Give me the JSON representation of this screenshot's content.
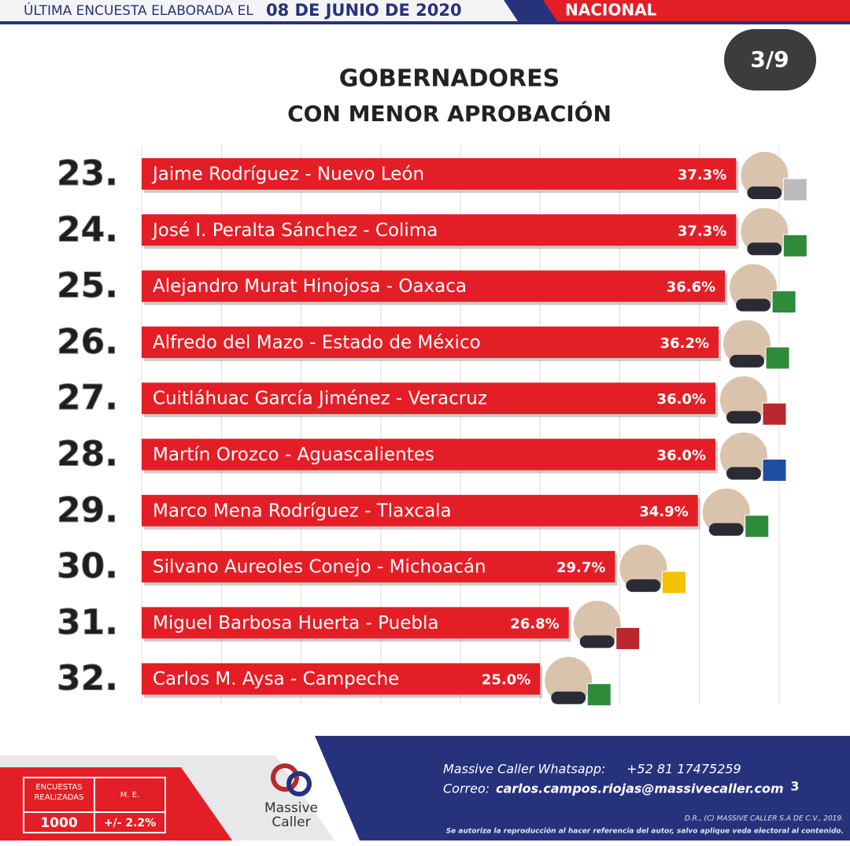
{
  "header": {
    "left": "ÚLTIMA ENCUESTA ELABORADA EL",
    "date": "08 DE JUNIO DE 2020",
    "region": "NACIONAL",
    "page": "3/9"
  },
  "chart_data": {
    "type": "bar",
    "orientation": "horizontal",
    "title": "GOBERNADORES",
    "subtitle": "CON MENOR APROBACIÓN",
    "ranks": [
      "23.",
      "24.",
      "25.",
      "26.",
      "27.",
      "28.",
      "29.",
      "30.",
      "31.",
      "32."
    ],
    "categories": [
      "Jaime Rodríguez - Nuevo León",
      "José I. Peralta Sánchez - Colima",
      "Alejandro Murat Hinojosa - Oaxaca",
      "Alfredo del Mazo - Estado de México",
      "Cuitláhuac García Jiménez - Veracruz",
      "Martín Orozco - Aguascalientes",
      "Marco Mena Rodríguez - Tlaxcala",
      "Silvano Aureoles Conejo - Michoacán",
      "Miguel Barbosa Huerta  - Puebla",
      "Carlos M. Aysa - Campeche"
    ],
    "values": [
      37.3,
      37.3,
      36.6,
      36.2,
      36.0,
      36.0,
      34.9,
      29.7,
      26.8,
      25.0
    ],
    "value_labels": [
      "37.3%",
      "37.3%",
      "36.6%",
      "36.2%",
      "36.0%",
      "36.0%",
      "34.9%",
      "29.7%",
      "26.8%",
      "25.0%"
    ],
    "color": "#e41e26",
    "xlim": [
      0,
      40
    ],
    "xticks": [
      0,
      5,
      10,
      15,
      20,
      25,
      30,
      35,
      40
    ],
    "grid": true,
    "tick_labels": false
  },
  "footer": {
    "surveys_label": "ENCUESTAS REALIZADAS",
    "me_label": "M. E.",
    "surveys": "1000",
    "me": "+/- 2.2%",
    "logo_top": "Massive",
    "logo_bottom": "Caller",
    "whatsapp_label": "Massive Caller Whatsapp:",
    "whatsapp": "+52 81 17475259",
    "email_label": "Correo:",
    "email": "carlos.campos.riojas@massivecaller.com",
    "page": "3",
    "rights": "D.R., (C) MASSIVE CALLER S.A DE C.V., 2019.",
    "notice": "Se autoriza la reproducción al hacer referencia del autor, salvo aplique veda electoral al contenido."
  }
}
